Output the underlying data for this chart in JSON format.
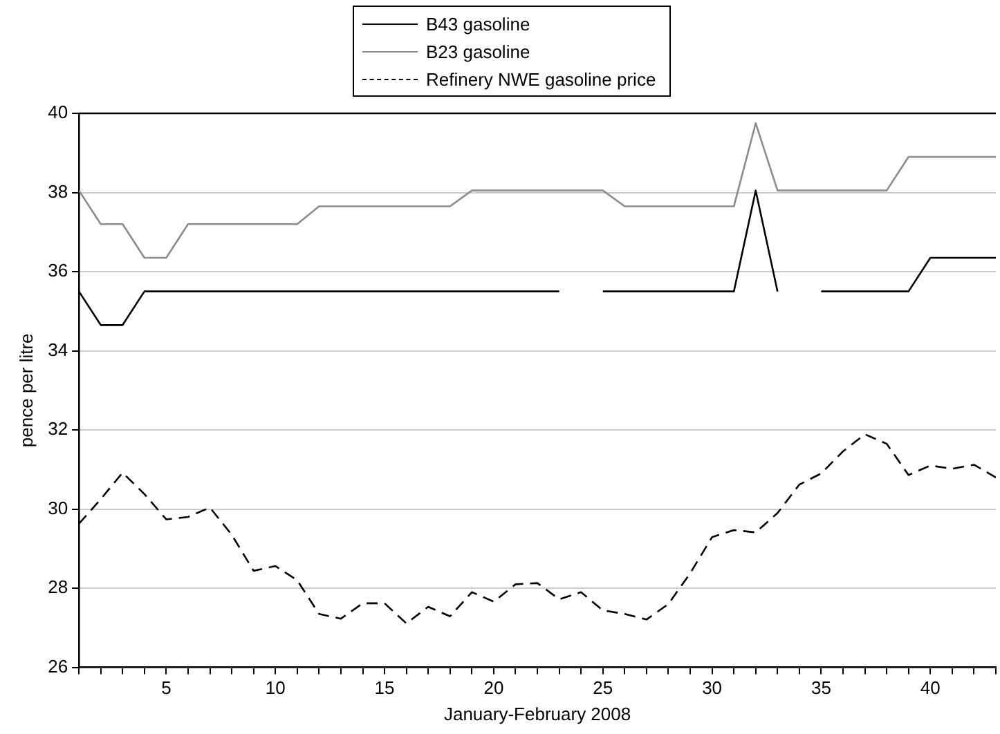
{
  "chart_data": {
    "type": "line",
    "xlabel": "January-February 2008",
    "ylabel": "pence per litre",
    "x": [
      1,
      2,
      3,
      4,
      5,
      6,
      7,
      8,
      9,
      10,
      11,
      12,
      13,
      14,
      15,
      16,
      17,
      18,
      19,
      20,
      21,
      22,
      23,
      24,
      25,
      26,
      27,
      28,
      29,
      30,
      31,
      32,
      33,
      34,
      35,
      36,
      37,
      38,
      39,
      40,
      41,
      42,
      43
    ],
    "series": [
      {
        "name": "B43 gasoline",
        "color": "#000000",
        "line_style": "solid",
        "values": [
          35.5,
          34.65,
          34.65,
          35.5,
          35.5,
          35.5,
          35.5,
          35.5,
          35.5,
          35.5,
          35.5,
          35.5,
          35.5,
          35.5,
          35.5,
          35.5,
          35.5,
          35.5,
          35.5,
          35.5,
          35.5,
          35.5,
          35.5,
          null,
          35.5,
          35.5,
          35.5,
          35.5,
          35.5,
          35.5,
          35.5,
          38.05,
          35.5,
          null,
          35.5,
          35.5,
          35.5,
          35.5,
          35.5,
          36.35,
          36.35,
          36.35,
          36.35
        ]
      },
      {
        "name": "B23 gasoline",
        "color": "#8c8c8c",
        "line_style": "solid",
        "values": [
          38.05,
          37.2,
          37.2,
          36.35,
          36.35,
          37.2,
          37.2,
          37.2,
          37.2,
          37.2,
          37.2,
          37.65,
          37.65,
          37.65,
          37.65,
          37.65,
          37.65,
          37.65,
          38.05,
          38.05,
          38.05,
          38.05,
          38.05,
          38.05,
          38.05,
          37.65,
          37.65,
          37.65,
          37.65,
          37.65,
          37.65,
          39.75,
          38.05,
          38.05,
          38.05,
          38.05,
          38.05,
          38.05,
          38.9,
          38.9,
          38.9,
          38.9,
          38.9
        ]
      },
      {
        "name": "Refinery NWE gasoline price",
        "color": "#000000",
        "line_style": "dashed",
        "values": [
          29.63,
          30.25,
          30.92,
          30.38,
          29.74,
          29.8,
          30.04,
          29.35,
          28.44,
          28.56,
          28.2,
          27.35,
          27.23,
          27.62,
          27.62,
          27.11,
          27.53,
          27.29,
          27.9,
          27.66,
          28.1,
          28.13,
          27.72,
          27.9,
          27.44,
          27.35,
          27.21,
          27.6,
          28.38,
          29.29,
          29.47,
          29.41,
          29.9,
          30.62,
          30.9,
          31.46,
          31.89,
          31.65,
          30.86,
          31.1,
          31.02,
          31.12,
          30.8
        ]
      }
    ],
    "xlim": [
      1,
      43
    ],
    "xticks": [
      {
        "value": 1,
        "label": null
      },
      {
        "value": 2,
        "label": null
      },
      {
        "value": 3,
        "label": null
      },
      {
        "value": 4,
        "label": null
      },
      5,
      {
        "value": 6,
        "label": null
      },
      {
        "value": 7,
        "label": null
      },
      {
        "value": 8,
        "label": null
      },
      {
        "value": 9,
        "label": null
      },
      10,
      {
        "value": 11,
        "label": null
      },
      {
        "value": 12,
        "label": null
      },
      {
        "value": 13,
        "label": null
      },
      {
        "value": 14,
        "label": null
      },
      15,
      {
        "value": 16,
        "label": null
      },
      {
        "value": 17,
        "label": null
      },
      {
        "value": 18,
        "label": null
      },
      {
        "value": 19,
        "label": null
      },
      20,
      {
        "value": 21,
        "label": null
      },
      {
        "value": 22,
        "label": null
      },
      {
        "value": 23,
        "label": null
      },
      {
        "value": 24,
        "label": null
      },
      25,
      {
        "value": 26,
        "label": null
      },
      {
        "value": 27,
        "label": null
      },
      {
        "value": 28,
        "label": null
      },
      {
        "value": 29,
        "label": null
      },
      30,
      {
        "value": 31,
        "label": null
      },
      {
        "value": 32,
        "label": null
      },
      {
        "value": 33,
        "label": null
      },
      {
        "value": 34,
        "label": null
      },
      35,
      {
        "value": 36,
        "label": null
      },
      {
        "value": 37,
        "label": null
      },
      {
        "value": 38,
        "label": null
      },
      {
        "value": 39,
        "label": null
      },
      40,
      {
        "value": 41,
        "label": null
      },
      {
        "value": 42,
        "label": null
      },
      {
        "value": 43,
        "label": null
      }
    ],
    "ylim": [
      26,
      40
    ],
    "yticks": [
      26,
      28,
      30,
      32,
      34,
      36,
      38,
      40
    ],
    "grid": "y",
    "legend": "top",
    "marker": "none"
  }
}
